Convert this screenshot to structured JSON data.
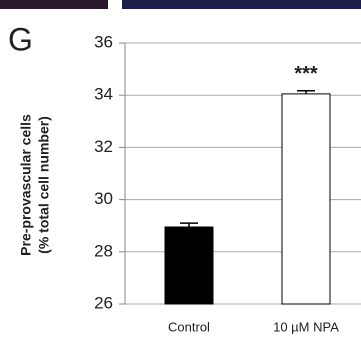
{
  "chart_data": {
    "type": "bar",
    "panel_label": "G",
    "ylabel": [
      "Pre-provascular cells",
      "(% total cell number)"
    ],
    "categories": [
      "Control",
      "10 µM NPA"
    ],
    "values": [
      28.95,
      34.05
    ],
    "errors": [
      0.15,
      0.12
    ],
    "colors": [
      "#000000",
      "#ffffff"
    ],
    "annotations": [
      null,
      "***"
    ],
    "ylim": [
      26,
      36
    ],
    "yticks": [
      26,
      28,
      30,
      32,
      34,
      36
    ],
    "grid": true
  }
}
